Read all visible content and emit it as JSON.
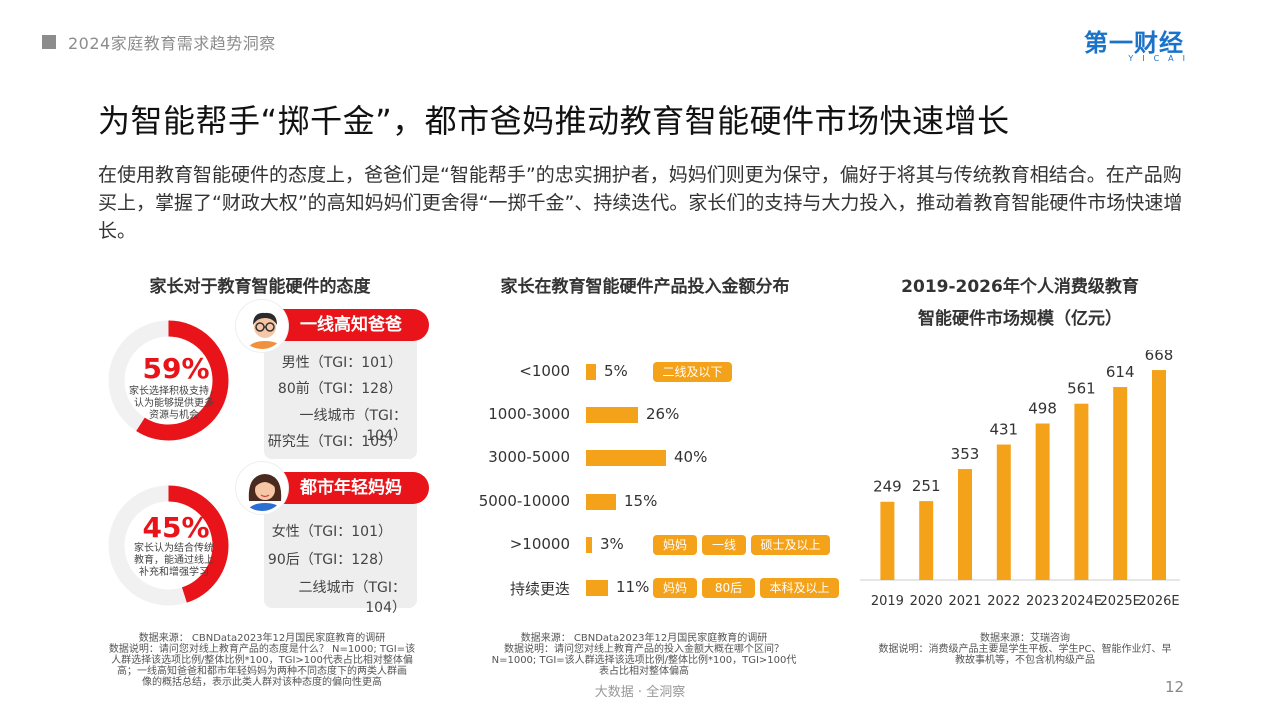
{
  "header": {
    "text": "2024家庭教育需求趋势洞察"
  },
  "logo": {
    "main": "第一财经",
    "sub": "YICAI"
  },
  "title": "为智能帮手“掷千金”，都市爸妈推动教育智能硬件市场快速增长",
  "intro": "在使用教育智能硬件的态度上，爸爸们是“智能帮手”的忠实拥护者，妈妈们则更为保守，偏好于将其与传统教育相结合。在产品购买上，掌握了“财政大权”的高知妈妈们更舍得“一掷千金”、持续迭代。家长们的支持与大力投入，推动着教育智能硬件市场快速增长。",
  "colors": {
    "red": "#e8141a",
    "orange": "#f5a21b",
    "grey": "#8c8c8c"
  },
  "panel1": {
    "title": "家长对于教育智能硬件的态度",
    "dad": {
      "pct": "59%",
      "pct_value": 59,
      "desc_lines": [
        "家长选择积极支持，",
        "认为能够提供更多",
        "资源与机会"
      ],
      "tag": "一线高知爸爸",
      "tgi": [
        "男性（TGI：101）",
        "80前（TGI：128）",
        "一线城市（TGI：104）",
        "研究生（TGI：105）"
      ]
    },
    "mom": {
      "pct": "45%",
      "pct_value": 45,
      "desc_lines": [
        "家长认为结合传统",
        "教育，能通过线上",
        "补充和增强学习"
      ],
      "tag": "都市年轻妈妈",
      "tgi": [
        "女性（TGI：101）",
        "90后（TGI：128）",
        "二线城市（TGI：104）"
      ]
    },
    "note_lines": [
      "数据来源： CBNData2023年12月国民家庭教育的调研",
      "数据说明：请问您对线上教育产品的态度是什么？ N=1000; TGI=该",
      "人群选择该选项比例/整体比例*100，TGI>100代表占比相对整体偏",
      "高；一线高知爸爸和都市年轻妈妈为两种不同态度下的两类人群画",
      "像的概括总结，表示此类人群对该种态度的偏向性更高"
    ]
  },
  "panel2": {
    "title": "家长在教育智能硬件产品投入金额分布",
    "note_lines": [
      "数据来源： CBNData2023年12月国民家庭教育的调研",
      "数据说明：请问您对线上教育产品的投入金额大概在哪个区间？",
      "N=1000; TGI=该人群选择该选项比例/整体比例*100，TGI>100代",
      "表占比相对整体偏高"
    ]
  },
  "panel3": {
    "title_lines": [
      "2019-2026年个人消费级教育",
      "智能硬件市场规模（亿元）"
    ],
    "note_lines": [
      "数据来源：艾瑞咨询",
      "数据说明：消费级产品主要是学生平板、学生PC、智能作业灯、早",
      "教故事机等，不包含机构级产品"
    ]
  },
  "chart_data": [
    {
      "type": "pie",
      "title": "家长对于教育智能硬件的态度",
      "series": [
        {
          "name": "一线高知爸爸",
          "values": [
            59
          ]
        },
        {
          "name": "都市年轻妈妈",
          "values": [
            45
          ]
        }
      ]
    },
    {
      "type": "bar",
      "title": "家长在教育智能硬件产品投入金额分布",
      "categories": [
        "<1000",
        "1000-3000",
        "3000-5000",
        "5000-10000",
        ">10000",
        "持续更迭"
      ],
      "values": [
        5,
        26,
        40,
        15,
        3,
        11
      ],
      "value_labels": [
        "5%",
        "26%",
        "40%",
        "15%",
        "3%",
        "11%"
      ],
      "annotations": [
        [
          "二线及以下"
        ],
        [],
        [],
        [],
        [
          "妈妈",
          "一线",
          "硕士及以上"
        ],
        [
          "妈妈",
          "80后",
          "本科及以上"
        ]
      ],
      "orientation": "horizontal"
    },
    {
      "type": "bar",
      "title": "2019-2026年个人消费级教育智能硬件市场规模（亿元）",
      "categories": [
        "2019",
        "2020",
        "2021",
        "2022",
        "2023",
        "2024E",
        "2025E",
        "2026E"
      ],
      "values": [
        249,
        251,
        353,
        431,
        498,
        561,
        614,
        668
      ],
      "ylim": [
        0,
        700
      ]
    }
  ],
  "footer": {
    "text": "大数据 · 全洞察",
    "page": "12"
  }
}
